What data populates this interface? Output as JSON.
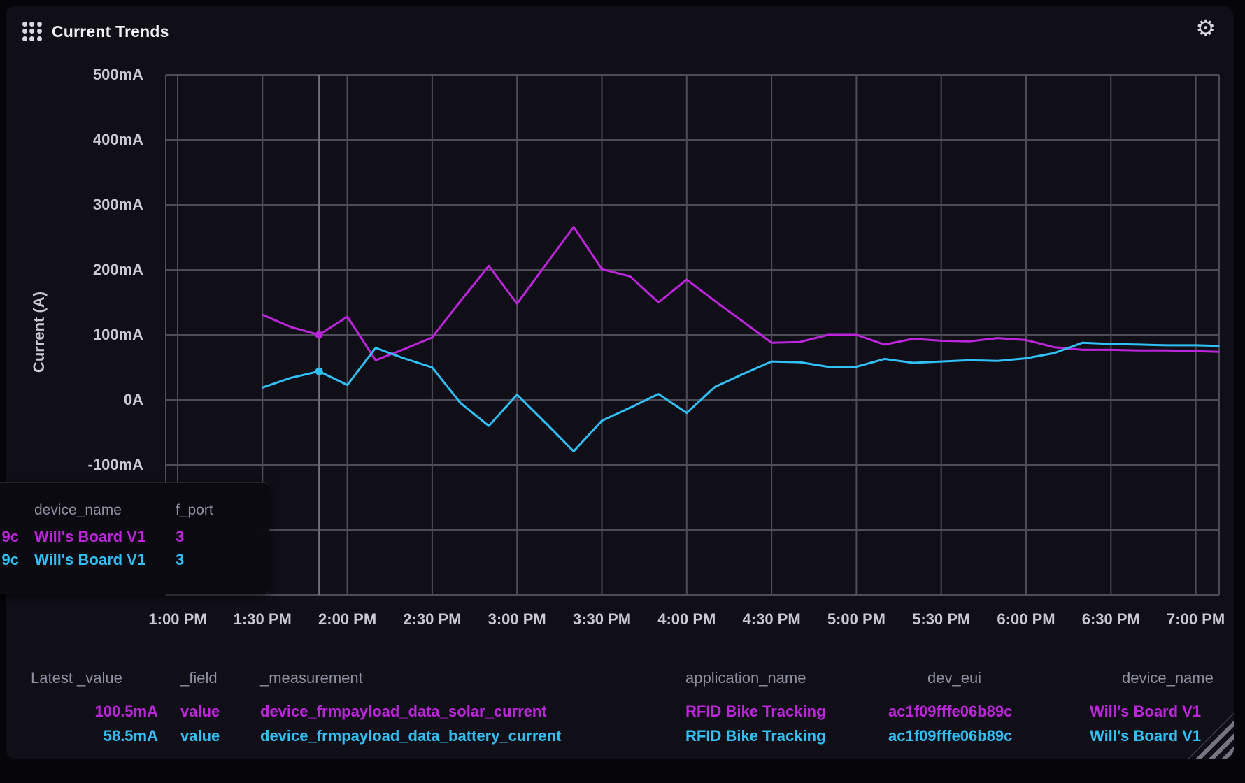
{
  "panel": {
    "title": "Current Trends"
  },
  "icons": {
    "gear": "⚙",
    "drag_handle": "grid-dots",
    "resize": "corner-grip"
  },
  "colors": {
    "solar_series": "#bd25dc",
    "battery_series": "#31c0f6",
    "grid": "#4f4c5a",
    "crosshair": "#73707e",
    "axis_text": "#c9c9d3",
    "muted_text": "#8e90a0",
    "panel_bg": "#100f18",
    "page_bg": "#05050a"
  },
  "chart_data": {
    "type": "line",
    "title": "Current Trends",
    "ylabel": "Current (A)",
    "unit": "mA",
    "grid": true,
    "ylim": [
      -300,
      500
    ],
    "x_tick_labels": [
      "1:00 PM",
      "1:30 PM",
      "2:00 PM",
      "2:30 PM",
      "3:00 PM",
      "3:30 PM",
      "4:00 PM",
      "4:30 PM",
      "5:00 PM",
      "5:30 PM",
      "6:00 PM",
      "6:30 PM",
      "7:00 PM"
    ],
    "y_ticks": [
      {
        "label": "500mA",
        "value": 500
      },
      {
        "label": "400mA",
        "value": 400
      },
      {
        "label": "300mA",
        "value": 300
      },
      {
        "label": "200mA",
        "value": 200
      },
      {
        "label": "100mA",
        "value": 100
      },
      {
        "label": "0A",
        "value": 0
      },
      {
        "label": "-100mA",
        "value": -100
      }
    ],
    "y_grid_values": [
      500,
      400,
      300,
      200,
      100,
      0,
      -100,
      -200,
      -300
    ],
    "x_minutes_after_1pm": [
      30,
      40,
      50,
      60,
      70,
      80,
      90,
      100,
      110,
      120,
      130,
      140,
      150,
      160,
      170,
      180,
      190,
      200,
      210,
      220,
      230,
      240,
      250,
      260,
      270,
      280,
      290,
      300,
      310,
      320,
      330,
      340,
      350,
      360,
      368
    ],
    "series": [
      {
        "name": "device_frmpayload_data_solar_current",
        "color": "#bd25dc",
        "values": [
          131,
          112,
          100,
          128,
          61,
          78,
          96,
          152,
          206,
          148,
          207,
          266,
          201,
          190,
          150,
          185,
          152,
          120,
          88,
          89,
          100,
          100,
          85,
          94,
          91,
          90,
          95,
          92,
          81,
          77,
          77,
          76,
          76,
          75,
          74
        ]
      },
      {
        "name": "device_frmpayload_data_battery_current",
        "color": "#31c0f6",
        "values": [
          19,
          34,
          44,
          23,
          80,
          64,
          50,
          -5,
          -40,
          8,
          -35,
          -79,
          -32,
          -12,
          9,
          -20,
          20,
          40,
          59,
          58,
          51,
          51,
          63,
          57,
          59,
          61,
          60,
          64,
          72,
          88,
          86,
          85,
          84,
          84,
          83
        ]
      }
    ],
    "hover": {
      "minute": 50
    }
  },
  "tooltip": {
    "header": {
      "dev_eui": "",
      "device_name": "device_name",
      "f_port": "f_port"
    },
    "rows": [
      {
        "dev_eui_tail": "9c",
        "device_name": "Will's Board V1",
        "f_port": "3",
        "color": "#bd25dc"
      },
      {
        "dev_eui_tail": "9c",
        "device_name": "Will's Board V1",
        "f_port": "3",
        "color": "#31c0f6"
      }
    ]
  },
  "legend": {
    "headers": [
      "Latest _value",
      "_field",
      "_measurement",
      "application_name",
      "dev_eui",
      "device_name"
    ],
    "rows": [
      {
        "color": "#bd25dc",
        "cells": [
          "100.5mA",
          "value",
          "device_frmpayload_data_solar_current",
          "RFID Bike Tracking",
          "ac1f09fffe06b89c",
          "Will's Board V1"
        ]
      },
      {
        "color": "#31c0f6",
        "cells": [
          "58.5mA",
          "value",
          "device_frmpayload_data_battery_current",
          "RFID Bike Tracking",
          "ac1f09fffe06b89c",
          "Will's Board V1"
        ]
      }
    ]
  }
}
